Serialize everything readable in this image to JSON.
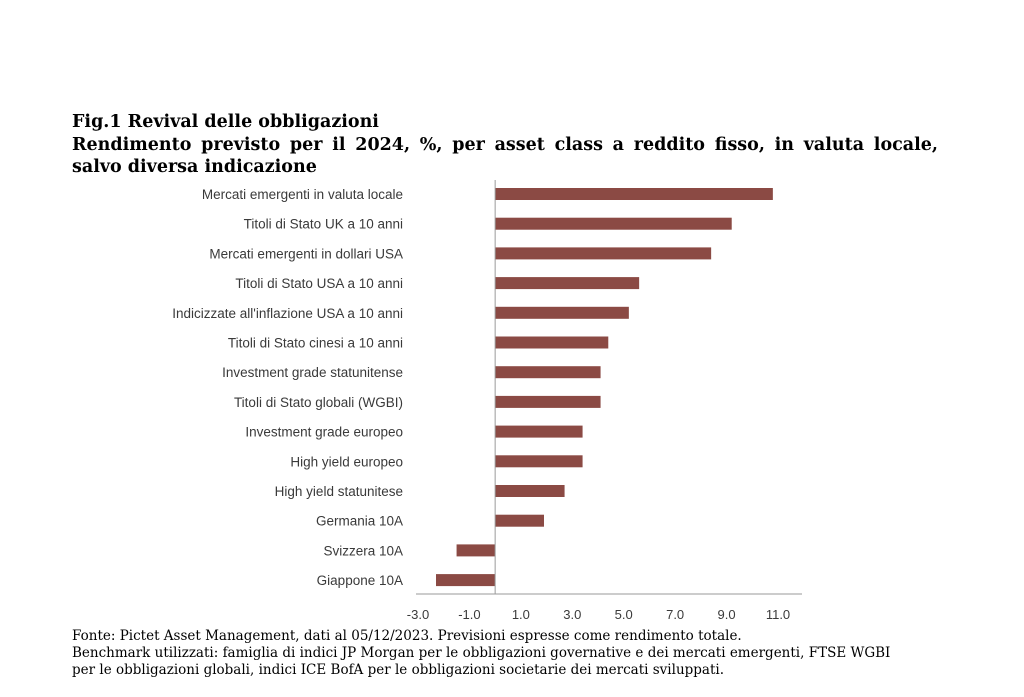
{
  "figure": {
    "title": "Fig.1 Revival delle obbligazioni",
    "subtitle": "Rendimento previsto per il 2024, %, per asset class a reddito fisso, in valuta locale, salvo diversa indicazione"
  },
  "chart_data": {
    "type": "bar",
    "orientation": "horizontal",
    "categories": [
      "Mercati emergenti in valuta locale",
      "Titoli di Stato UK a 10 anni",
      "Mercati emergenti in dollari USA",
      "Titoli di Stato USA a 10 anni",
      "Indicizzate all'inflazione USA a 10 anni",
      "Titoli di Stato cinesi a 10 anni",
      "Investment grade statunitense",
      "Titoli di Stato globali (WGBI)",
      "Investment grade europeo",
      "High yield europeo",
      "High yield statunitese",
      "Germania 10A",
      "Svizzera 10A",
      "Giappone 10A"
    ],
    "values": [
      10.8,
      9.2,
      8.4,
      5.6,
      5.2,
      4.4,
      4.1,
      4.1,
      3.4,
      3.4,
      2.7,
      1.9,
      -1.5,
      -2.3
    ],
    "xlim": [
      -3.0,
      11.0
    ],
    "xticks": [
      "-3.0",
      "-1.0",
      "1.0",
      "3.0",
      "5.0",
      "7.0",
      "9.0",
      "11.0"
    ],
    "xtick_values": [
      -3,
      -1,
      1,
      3,
      5,
      7,
      9,
      11
    ],
    "bar_color": "#8b4a44",
    "axis_color": "#9a9a9a",
    "grid": false,
    "legend": "none"
  },
  "source": {
    "line1": "Fonte: Pictet Asset Management, dati al 05/12/2023. Previsioni espresse come rendimento totale.",
    "line2": "Benchmark utilizzati: famiglia di indici JP Morgan per le obbligazioni governative e dei mercati emergenti, FTSE WGBI",
    "line3": "per le obbligazioni globali, indici ICE BofA per le obbligazioni societarie dei mercati sviluppati."
  }
}
